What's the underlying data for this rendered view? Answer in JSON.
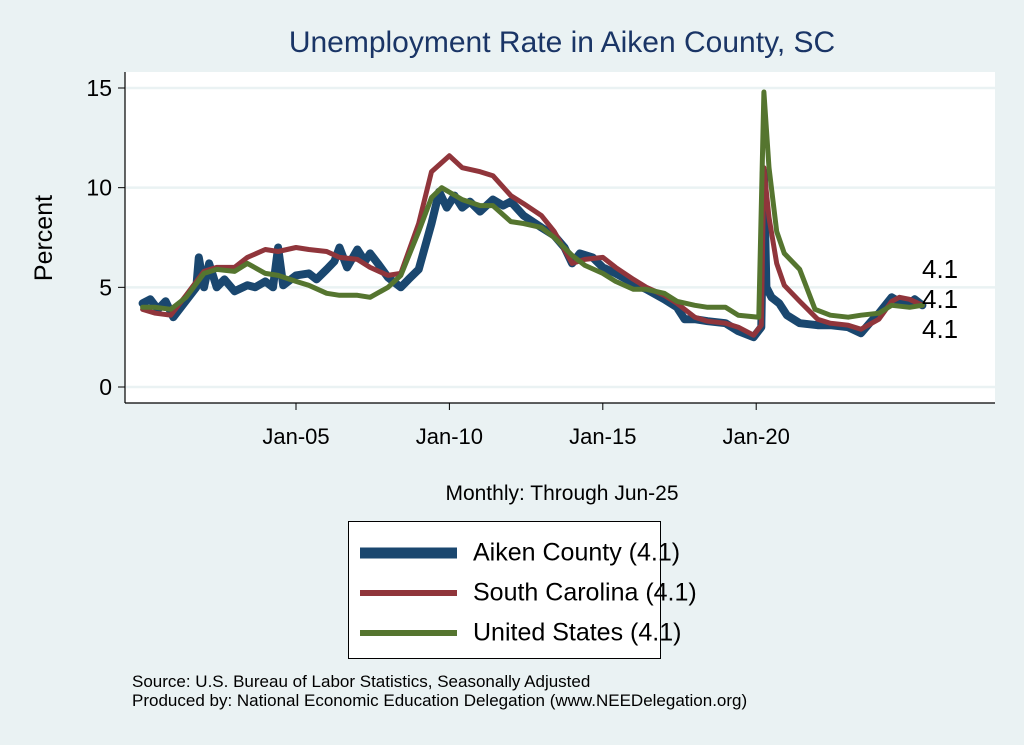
{
  "chart_data": {
    "type": "line",
    "title": "Unemployment Rate in Aiken  County, SC",
    "xlabel": "Monthly: Through Jun-25",
    "ylabel": "Percent",
    "ylim": [
      0,
      15
    ],
    "yticks": [
      "0",
      "5",
      "10",
      "15"
    ],
    "xticks": [
      {
        "date": "2005-01",
        "label": "Jan-05"
      },
      {
        "date": "2010-01",
        "label": "Jan-10"
      },
      {
        "date": "2015-01",
        "label": "Jan-15"
      },
      {
        "date": "2020-01",
        "label": "Jan-20"
      }
    ],
    "grid": true,
    "legend_placement": "bottom",
    "series": [
      {
        "name": "Aiken  County (4.1)",
        "end_label": "4.1",
        "color": "#1a476f",
        "points": [
          [
            "2000-01",
            4.2
          ],
          [
            "2000-04",
            4.4
          ],
          [
            "2000-07",
            3.9
          ],
          [
            "2000-10",
            4.3
          ],
          [
            "2001-01",
            3.5
          ],
          [
            "2001-04",
            4.0
          ],
          [
            "2001-07",
            4.5
          ],
          [
            "2001-10",
            5.0
          ],
          [
            "2001-11",
            6.5
          ],
          [
            "2002-01",
            5.0
          ],
          [
            "2002-03",
            6.2
          ],
          [
            "2002-06",
            5.0
          ],
          [
            "2002-09",
            5.4
          ],
          [
            "2003-01",
            4.8
          ],
          [
            "2003-06",
            5.1
          ],
          [
            "2003-09",
            5.0
          ],
          [
            "2004-01",
            5.3
          ],
          [
            "2004-04",
            5.0
          ],
          [
            "2004-06",
            7.0
          ],
          [
            "2004-08",
            5.1
          ],
          [
            "2005-01",
            5.6
          ],
          [
            "2005-06",
            5.7
          ],
          [
            "2005-09",
            5.4
          ],
          [
            "2006-01",
            5.9
          ],
          [
            "2006-04",
            6.3
          ],
          [
            "2006-06",
            7.0
          ],
          [
            "2006-09",
            6.0
          ],
          [
            "2007-01",
            6.9
          ],
          [
            "2007-04",
            6.3
          ],
          [
            "2007-06",
            6.7
          ],
          [
            "2007-09",
            6.2
          ],
          [
            "2008-01",
            5.5
          ],
          [
            "2008-06",
            5.0
          ],
          [
            "2008-09",
            5.4
          ],
          [
            "2009-01",
            5.9
          ],
          [
            "2009-06",
            8.2
          ],
          [
            "2009-09",
            9.8
          ],
          [
            "2009-12",
            9.0
          ],
          [
            "2010-03",
            9.6
          ],
          [
            "2010-06",
            9.0
          ],
          [
            "2010-09",
            9.3
          ],
          [
            "2011-01",
            8.8
          ],
          [
            "2011-06",
            9.4
          ],
          [
            "2011-10",
            9.1
          ],
          [
            "2012-01",
            9.3
          ],
          [
            "2012-06",
            8.6
          ],
          [
            "2013-01",
            8.0
          ],
          [
            "2013-06",
            7.6
          ],
          [
            "2013-10",
            7.0
          ],
          [
            "2014-01",
            6.2
          ],
          [
            "2014-04",
            6.7
          ],
          [
            "2014-09",
            6.5
          ],
          [
            "2015-01",
            6.0
          ],
          [
            "2015-06",
            5.7
          ],
          [
            "2016-01",
            5.2
          ],
          [
            "2016-06",
            4.9
          ],
          [
            "2017-01",
            4.4
          ],
          [
            "2017-06",
            4.0
          ],
          [
            "2017-09",
            3.4
          ],
          [
            "2018-01",
            3.4
          ],
          [
            "2018-06",
            3.3
          ],
          [
            "2019-01",
            3.2
          ],
          [
            "2019-06",
            2.8
          ],
          [
            "2019-12",
            2.5
          ],
          [
            "2020-03",
            3.0
          ],
          [
            "2020-04",
            10.8
          ],
          [
            "2020-05",
            5.0
          ],
          [
            "2020-07",
            4.5
          ],
          [
            "2020-10",
            4.2
          ],
          [
            "2021-01",
            3.6
          ],
          [
            "2021-06",
            3.2
          ],
          [
            "2022-01",
            3.1
          ],
          [
            "2022-06",
            3.1
          ],
          [
            "2023-01",
            3.0
          ],
          [
            "2023-06",
            2.7
          ],
          [
            "2023-10",
            3.3
          ],
          [
            "2024-01",
            3.7
          ],
          [
            "2024-06",
            4.5
          ],
          [
            "2024-10",
            4.2
          ],
          [
            "2025-01",
            4.2
          ],
          [
            "2025-03",
            4.4
          ],
          [
            "2025-06",
            4.1
          ]
        ]
      },
      {
        "name": "South Carolina (4.1)",
        "end_label": "4.1",
        "color": "#90353b",
        "points": [
          [
            "2000-01",
            3.9
          ],
          [
            "2000-06",
            3.7
          ],
          [
            "2000-12",
            3.6
          ],
          [
            "2001-06",
            4.6
          ],
          [
            "2002-01",
            5.8
          ],
          [
            "2002-06",
            6.0
          ],
          [
            "2003-01",
            6.0
          ],
          [
            "2003-06",
            6.5
          ],
          [
            "2004-01",
            6.9
          ],
          [
            "2004-06",
            6.8
          ],
          [
            "2005-01",
            7.0
          ],
          [
            "2005-06",
            6.9
          ],
          [
            "2006-01",
            6.8
          ],
          [
            "2006-06",
            6.5
          ],
          [
            "2007-01",
            6.4
          ],
          [
            "2007-06",
            6.0
          ],
          [
            "2008-01",
            5.6
          ],
          [
            "2008-06",
            5.7
          ],
          [
            "2009-01",
            8.2
          ],
          [
            "2009-06",
            10.8
          ],
          [
            "2010-01",
            11.6
          ],
          [
            "2010-06",
            11.0
          ],
          [
            "2011-01",
            10.8
          ],
          [
            "2011-06",
            10.6
          ],
          [
            "2012-01",
            9.6
          ],
          [
            "2012-06",
            9.2
          ],
          [
            "2013-01",
            8.6
          ],
          [
            "2013-06",
            7.8
          ],
          [
            "2014-01",
            6.2
          ],
          [
            "2014-06",
            6.4
          ],
          [
            "2015-01",
            6.5
          ],
          [
            "2015-06",
            6.0
          ],
          [
            "2016-01",
            5.4
          ],
          [
            "2016-06",
            5.0
          ],
          [
            "2017-01",
            4.6
          ],
          [
            "2017-06",
            4.2
          ],
          [
            "2018-01",
            3.5
          ],
          [
            "2018-06",
            3.3
          ],
          [
            "2019-01",
            3.2
          ],
          [
            "2019-06",
            3.0
          ],
          [
            "2019-12",
            2.6
          ],
          [
            "2020-03",
            3.1
          ],
          [
            "2020-04",
            11.0
          ],
          [
            "2020-06",
            8.5
          ],
          [
            "2020-09",
            6.2
          ],
          [
            "2020-12",
            5.1
          ],
          [
            "2021-06",
            4.3
          ],
          [
            "2022-01",
            3.4
          ],
          [
            "2022-06",
            3.2
          ],
          [
            "2023-01",
            3.1
          ],
          [
            "2023-06",
            2.9
          ],
          [
            "2024-01",
            3.4
          ],
          [
            "2024-06",
            4.3
          ],
          [
            "2024-09",
            4.5
          ],
          [
            "2025-01",
            4.4
          ],
          [
            "2025-06",
            4.1
          ]
        ]
      },
      {
        "name": "United States (4.1)",
        "end_label": "4.1",
        "color": "#55752f",
        "points": [
          [
            "2000-01",
            4.0
          ],
          [
            "2000-06",
            4.0
          ],
          [
            "2000-12",
            3.9
          ],
          [
            "2001-06",
            4.5
          ],
          [
            "2002-01",
            5.7
          ],
          [
            "2002-06",
            5.9
          ],
          [
            "2003-01",
            5.8
          ],
          [
            "2003-06",
            6.2
          ],
          [
            "2004-01",
            5.7
          ],
          [
            "2004-06",
            5.6
          ],
          [
            "2005-01",
            5.3
          ],
          [
            "2005-06",
            5.1
          ],
          [
            "2006-01",
            4.7
          ],
          [
            "2006-06",
            4.6
          ],
          [
            "2007-01",
            4.6
          ],
          [
            "2007-06",
            4.5
          ],
          [
            "2008-01",
            5.0
          ],
          [
            "2008-06",
            5.6
          ],
          [
            "2009-01",
            7.8
          ],
          [
            "2009-06",
            9.5
          ],
          [
            "2009-10",
            10.0
          ],
          [
            "2010-06",
            9.4
          ],
          [
            "2011-01",
            9.1
          ],
          [
            "2011-06",
            9.1
          ],
          [
            "2012-01",
            8.3
          ],
          [
            "2012-06",
            8.2
          ],
          [
            "2013-01",
            8.0
          ],
          [
            "2013-06",
            7.5
          ],
          [
            "2014-01",
            6.6
          ],
          [
            "2014-06",
            6.1
          ],
          [
            "2015-01",
            5.7
          ],
          [
            "2015-06",
            5.3
          ],
          [
            "2016-01",
            4.9
          ],
          [
            "2016-06",
            4.9
          ],
          [
            "2017-01",
            4.7
          ],
          [
            "2017-06",
            4.3
          ],
          [
            "2018-01",
            4.1
          ],
          [
            "2018-06",
            4.0
          ],
          [
            "2019-01",
            4.0
          ],
          [
            "2019-06",
            3.6
          ],
          [
            "2020-02",
            3.5
          ],
          [
            "2020-04",
            14.8
          ],
          [
            "2020-06",
            11.0
          ],
          [
            "2020-09",
            7.8
          ],
          [
            "2020-12",
            6.7
          ],
          [
            "2021-06",
            5.9
          ],
          [
            "2021-12",
            3.9
          ],
          [
            "2022-06",
            3.6
          ],
          [
            "2023-01",
            3.5
          ],
          [
            "2023-06",
            3.6
          ],
          [
            "2024-01",
            3.7
          ],
          [
            "2024-06",
            4.1
          ],
          [
            "2025-01",
            4.0
          ],
          [
            "2025-06",
            4.1
          ]
        ]
      }
    ]
  },
  "source": {
    "line1": "Source: U.S. Bureau of Labor Statistics, Seasonally Adjusted",
    "line2": "Produced by: National Economic Education Delegation (www.NEEDelegation.org)"
  }
}
